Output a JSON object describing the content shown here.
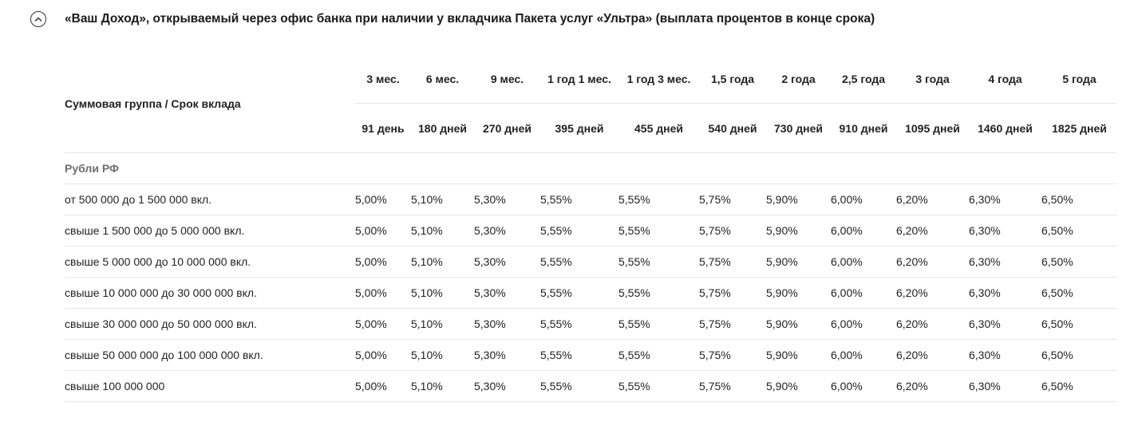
{
  "section": {
    "title": "«Ваш Доход», открываемый через офис банка при наличии у вкладчика Пакета услуг «Ультра» (выплата процентов в конце срока)",
    "toggle_icon": "chevron-up-icon"
  },
  "table": {
    "group_header": "Суммовая группа / Срок вклада",
    "terms": [
      "3 мес.",
      "6 мес.",
      "9 мес.",
      "1 год 1 мес.",
      "1 год 3 мес.",
      "1,5 года",
      "2 года",
      "2,5 года",
      "3 года",
      "4 года",
      "5 года"
    ],
    "days": [
      "91 день",
      "180 дней",
      "270 дней",
      "395 дней",
      "455 дней",
      "540 дней",
      "730 дней",
      "910 дней",
      "1095 дней",
      "1460 дней",
      "1825 дней"
    ],
    "currency": "Рубли РФ",
    "rows": [
      {
        "label": "от 500 000 до 1 500 000 вкл.",
        "values": [
          "5,00%",
          "5,10%",
          "5,30%",
          "5,55%",
          "5,55%",
          "5,75%",
          "5,90%",
          "6,00%",
          "6,20%",
          "6,30%",
          "6,50%"
        ]
      },
      {
        "label": "свыше 1 500 000 до 5 000 000 вкл.",
        "values": [
          "5,00%",
          "5,10%",
          "5,30%",
          "5,55%",
          "5,55%",
          "5,75%",
          "5,90%",
          "6,00%",
          "6,20%",
          "6,30%",
          "6,50%"
        ]
      },
      {
        "label": "свыше 5 000 000 до 10 000 000 вкл.",
        "values": [
          "5,00%",
          "5,10%",
          "5,30%",
          "5,55%",
          "5,55%",
          "5,75%",
          "5,90%",
          "6,00%",
          "6,20%",
          "6,30%",
          "6,50%"
        ]
      },
      {
        "label": "свыше 10 000 000 до 30 000 000 вкл.",
        "values": [
          "5,00%",
          "5,10%",
          "5,30%",
          "5,55%",
          "5,55%",
          "5,75%",
          "5,90%",
          "6,00%",
          "6,20%",
          "6,30%",
          "6,50%"
        ]
      },
      {
        "label": "свыше 30 000 000 до 50 000 000 вкл.",
        "values": [
          "5,00%",
          "5,10%",
          "5,30%",
          "5,55%",
          "5,55%",
          "5,75%",
          "5,90%",
          "6,00%",
          "6,20%",
          "6,30%",
          "6,50%"
        ]
      },
      {
        "label": "свыше 50 000 000 до 100 000 000 вкл.",
        "values": [
          "5,00%",
          "5,10%",
          "5,30%",
          "5,55%",
          "5,55%",
          "5,75%",
          "5,90%",
          "6,00%",
          "6,20%",
          "6,30%",
          "6,50%"
        ]
      },
      {
        "label": "свыше 100 000 000",
        "values": [
          "5,00%",
          "5,10%",
          "5,30%",
          "5,55%",
          "5,55%",
          "5,75%",
          "5,90%",
          "6,00%",
          "6,20%",
          "6,30%",
          "6,50%"
        ]
      }
    ]
  }
}
